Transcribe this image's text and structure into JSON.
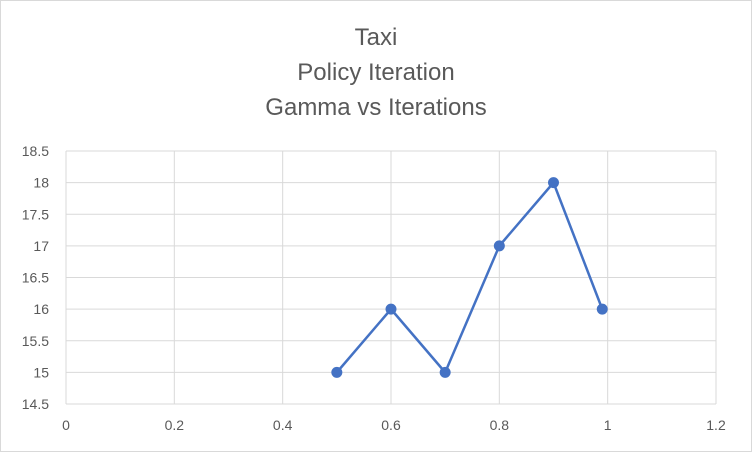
{
  "chart_data": {
    "type": "scatter",
    "title_lines": [
      "Taxi",
      "Policy Iteration",
      "Gamma vs Iterations"
    ],
    "xlabel": "",
    "ylabel": "",
    "xlim": [
      0,
      1.2
    ],
    "ylim": [
      14.5,
      18.5
    ],
    "x_ticks": [
      "0",
      "0.2",
      "0.4",
      "0.6",
      "0.8",
      "1",
      "1.2"
    ],
    "y_ticks": [
      "14.5",
      "15",
      "15.5",
      "16",
      "16.5",
      "17",
      "17.5",
      "18",
      "18.5"
    ],
    "grid": true,
    "legend": "none",
    "series": [
      {
        "x": [
          0.5,
          0.6,
          0.7,
          0.8,
          0.9,
          0.99
        ],
        "y": [
          15,
          16,
          15,
          17,
          18,
          16
        ],
        "color": "#4472c4",
        "style": "lines-and-markers"
      }
    ]
  }
}
